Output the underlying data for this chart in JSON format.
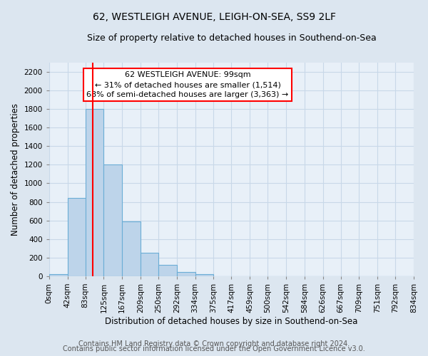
{
  "title": "62, WESTLEIGH AVENUE, LEIGH-ON-SEA, SS9 2LF",
  "subtitle": "Size of property relative to detached houses in Southend-on-Sea",
  "xlabel": "Distribution of detached houses by size in Southend-on-Sea",
  "ylabel": "Number of detached properties",
  "bar_edges": [
    0,
    42,
    83,
    125,
    167,
    209,
    250,
    292,
    334,
    375,
    417,
    459,
    500,
    542,
    584,
    626,
    667,
    709,
    751,
    792,
    834
  ],
  "bar_heights": [
    25,
    840,
    1800,
    1200,
    590,
    255,
    125,
    45,
    25,
    0,
    0,
    0,
    0,
    0,
    0,
    0,
    0,
    0,
    0,
    0
  ],
  "bar_color": "#bdd4ea",
  "bar_edge_color": "#6baed6",
  "vline_x": 99,
  "vline_color": "red",
  "annotation_title": "62 WESTLEIGH AVENUE: 99sqm",
  "annotation_line1": "← 31% of detached houses are smaller (1,514)",
  "annotation_line2": "68% of semi-detached houses are larger (3,363) →",
  "ylim": [
    0,
    2300
  ],
  "yticks": [
    0,
    200,
    400,
    600,
    800,
    1000,
    1200,
    1400,
    1600,
    1800,
    2000,
    2200
  ],
  "tick_labels": [
    "0sqm",
    "42sqm",
    "83sqm",
    "125sqm",
    "167sqm",
    "209sqm",
    "250sqm",
    "292sqm",
    "334sqm",
    "375sqm",
    "417sqm",
    "459sqm",
    "500sqm",
    "542sqm",
    "584sqm",
    "626sqm",
    "667sqm",
    "709sqm",
    "751sqm",
    "792sqm",
    "834sqm"
  ],
  "footer1": "Contains HM Land Registry data © Crown copyright and database right 2024.",
  "footer2": "Contains public sector information licensed under the Open Government Licence v3.0.",
  "background_color": "#dce6f0",
  "plot_bg_color": "#e8f0f8",
  "grid_color": "#c8d8e8",
  "title_fontsize": 10,
  "subtitle_fontsize": 9,
  "axis_label_fontsize": 8.5,
  "tick_fontsize": 7.5,
  "annotation_fontsize": 8,
  "footer_fontsize": 7
}
